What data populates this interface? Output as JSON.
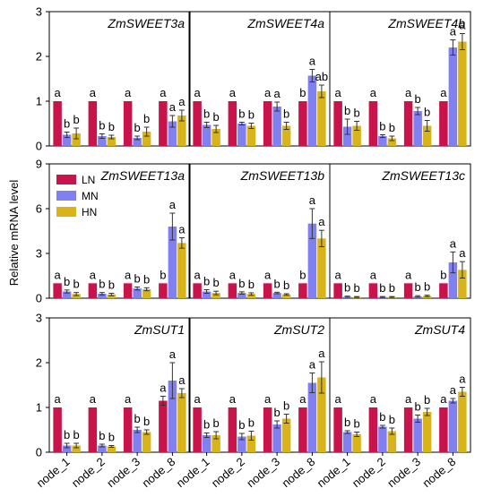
{
  "chart_data": {
    "type": "bar",
    "ylabel": "Relative mRNA level",
    "categories": [
      "node_1",
      "node_2",
      "node_3",
      "node_8"
    ],
    "legend": {
      "placement": "top-left of middle-left panel",
      "entries": [
        "LN",
        "MN",
        "HN"
      ]
    },
    "colors": {
      "LN": "#c8144b",
      "MN": "#8080f0",
      "HN": "#d8b41a"
    },
    "grid": false,
    "rows": [
      {
        "ylim": [
          0,
          3
        ],
        "yticks": [
          "0",
          "1",
          "2",
          "3"
        ]
      },
      {
        "ylim": [
          0,
          9
        ],
        "yticks": [
          "0",
          "3",
          "6",
          "9"
        ]
      },
      {
        "ylim": [
          0,
          3
        ],
        "yticks": [
          "0",
          "1",
          "2",
          "3"
        ]
      }
    ],
    "panels": [
      {
        "title": "ZmSWEET3a",
        "row": 0,
        "col": 0,
        "series": [
          {
            "name": "LN",
            "values": [
              1.0,
              1.0,
              1.0,
              1.0
            ],
            "errors": [
              0,
              0,
              0,
              0
            ],
            "labels": [
              "a",
              "a",
              "a",
              "a"
            ]
          },
          {
            "name": "MN",
            "values": [
              0.25,
              0.22,
              0.18,
              0.55
            ],
            "errors": [
              0.06,
              0.05,
              0.04,
              0.13
            ],
            "labels": [
              "b",
              "b",
              "b",
              "a"
            ]
          },
          {
            "name": "HN",
            "values": [
              0.28,
              0.2,
              0.32,
              0.68
            ],
            "errors": [
              0.12,
              0.04,
              0.1,
              0.12
            ],
            "labels": [
              "b",
              "b",
              "b",
              "a"
            ]
          }
        ]
      },
      {
        "title": "ZmSWEET4a",
        "row": 0,
        "col": 1,
        "series": [
          {
            "name": "LN",
            "values": [
              1.0,
              1.0,
              1.0,
              1.0
            ],
            "errors": [
              0,
              0,
              0,
              0
            ],
            "labels": [
              "a",
              "a",
              "a",
              "b"
            ]
          },
          {
            "name": "MN",
            "values": [
              0.47,
              0.5,
              0.88,
              1.57
            ],
            "errors": [
              0.06,
              0.03,
              0.1,
              0.14
            ],
            "labels": [
              "b",
              "b",
              "a",
              "a"
            ]
          },
          {
            "name": "HN",
            "values": [
              0.38,
              0.45,
              0.45,
              1.22
            ],
            "errors": [
              0.08,
              0.06,
              0.08,
              0.14
            ],
            "labels": [
              "b",
              "b",
              "b",
              "ab"
            ]
          }
        ]
      },
      {
        "title": "ZmSWEET4b",
        "row": 0,
        "col": 2,
        "series": [
          {
            "name": "LN",
            "values": [
              1.0,
              1.0,
              1.0,
              1.0
            ],
            "errors": [
              0,
              0,
              0,
              0
            ],
            "labels": [
              "a",
              "a",
              "a",
              "a"
            ]
          },
          {
            "name": "MN",
            "values": [
              0.43,
              0.22,
              0.78,
              2.2
            ],
            "errors": [
              0.17,
              0.03,
              0.08,
              0.17
            ],
            "labels": [
              "b",
              "b",
              "b",
              "a"
            ]
          },
          {
            "name": "HN",
            "values": [
              0.45,
              0.17,
              0.45,
              2.33
            ],
            "errors": [
              0.1,
              0.05,
              0.12,
              0.18
            ],
            "labels": [
              "b",
              "b",
              "b",
              "a"
            ]
          }
        ]
      },
      {
        "title": "ZmSWEET13a",
        "row": 1,
        "col": 0,
        "series": [
          {
            "name": "LN",
            "values": [
              1.0,
              1.0,
              1.0,
              1.0
            ],
            "errors": [
              0,
              0,
              0,
              0
            ],
            "labels": [
              "a",
              "a",
              "a",
              "b"
            ]
          },
          {
            "name": "MN",
            "values": [
              0.45,
              0.3,
              0.65,
              4.8
            ],
            "errors": [
              0.1,
              0.08,
              0.1,
              0.9
            ],
            "labels": [
              "b",
              "b",
              "b",
              "a"
            ]
          },
          {
            "name": "HN",
            "values": [
              0.28,
              0.25,
              0.6,
              3.7
            ],
            "errors": [
              0.1,
              0.08,
              0.1,
              0.35
            ],
            "labels": [
              "b",
              "b",
              "b",
              "a"
            ]
          }
        ]
      },
      {
        "title": "ZmSWEET13b",
        "row": 1,
        "col": 1,
        "series": [
          {
            "name": "LN",
            "values": [
              1.0,
              1.0,
              1.0,
              1.0
            ],
            "errors": [
              0,
              0,
              0,
              0
            ],
            "labels": [
              "a",
              "a",
              "a",
              "b"
            ]
          },
          {
            "name": "MN",
            "values": [
              0.45,
              0.35,
              0.35,
              5.0
            ],
            "errors": [
              0.12,
              0.08,
              0.05,
              1.0
            ],
            "labels": [
              "b",
              "b",
              "b",
              "a"
            ]
          },
          {
            "name": "HN",
            "values": [
              0.35,
              0.28,
              0.25,
              4.0
            ],
            "errors": [
              0.12,
              0.08,
              0.05,
              0.55
            ],
            "labels": [
              "b",
              "b",
              "b",
              "a"
            ]
          }
        ]
      },
      {
        "title": "ZmSWEET13c",
        "row": 1,
        "col": 2,
        "series": [
          {
            "name": "LN",
            "values": [
              1.0,
              1.0,
              1.0,
              1.0
            ],
            "errors": [
              0,
              0,
              0,
              0
            ],
            "labels": [
              "a",
              "a",
              "a",
              "b"
            ]
          },
          {
            "name": "MN",
            "values": [
              0.1,
              0.08,
              0.12,
              2.4
            ],
            "errors": [
              0.04,
              0.03,
              0.05,
              0.7
            ],
            "labels": [
              "b",
              "b",
              "b",
              "a"
            ]
          },
          {
            "name": "HN",
            "values": [
              0.08,
              0.08,
              0.15,
              1.9
            ],
            "errors": [
              0.03,
              0.03,
              0.05,
              0.55
            ],
            "labels": [
              "b",
              "b",
              "b",
              "a"
            ]
          }
        ]
      },
      {
        "title": "ZmSUT1",
        "row": 2,
        "col": 0,
        "series": [
          {
            "name": "LN",
            "values": [
              1.0,
              1.0,
              1.0,
              1.15
            ],
            "errors": [
              0,
              0,
              0,
              0.1
            ],
            "labels": [
              "a",
              "a",
              "a",
              "a"
            ]
          },
          {
            "name": "MN",
            "values": [
              0.15,
              0.15,
              0.5,
              1.6
            ],
            "errors": [
              0.05,
              0.03,
              0.06,
              0.4
            ],
            "labels": [
              "b",
              "b",
              "b",
              "a"
            ]
          },
          {
            "name": "HN",
            "values": [
              0.15,
              0.13,
              0.45,
              1.32
            ],
            "errors": [
              0.05,
              0.02,
              0.05,
              0.1
            ],
            "labels": [
              "b",
              "b",
              "b",
              "a"
            ]
          }
        ]
      },
      {
        "title": "ZmSUT2",
        "row": 2,
        "col": 1,
        "series": [
          {
            "name": "LN",
            "values": [
              1.0,
              1.0,
              1.0,
              1.0
            ],
            "errors": [
              0,
              0,
              0,
              0
            ],
            "labels": [
              "a",
              "a",
              "a",
              "a"
            ]
          },
          {
            "name": "MN",
            "values": [
              0.38,
              0.35,
              0.62,
              1.55
            ],
            "errors": [
              0.05,
              0.07,
              0.08,
              0.22
            ],
            "labels": [
              "b",
              "b",
              "b",
              "a"
            ]
          },
          {
            "name": "HN",
            "values": [
              0.38,
              0.37,
              0.75,
              1.67
            ],
            "errors": [
              0.08,
              0.1,
              0.1,
              0.35
            ],
            "labels": [
              "b",
              "b",
              "b",
              "a"
            ]
          }
        ]
      },
      {
        "title": "ZmSUT4",
        "row": 2,
        "col": 2,
        "series": [
          {
            "name": "LN",
            "values": [
              1.0,
              1.0,
              1.0,
              1.0
            ],
            "errors": [
              0,
              0,
              0,
              0
            ],
            "labels": [
              "a",
              "a",
              "a",
              "a"
            ]
          },
          {
            "name": "MN",
            "values": [
              0.45,
              0.57,
              0.75,
              1.15
            ],
            "errors": [
              0.03,
              0.03,
              0.08,
              0.05
            ],
            "labels": [
              "b",
              "b",
              "b",
              "a"
            ]
          },
          {
            "name": "HN",
            "values": [
              0.4,
              0.47,
              0.9,
              1.35
            ],
            "errors": [
              0.05,
              0.07,
              0.08,
              0.1
            ],
            "labels": [
              "b",
              "b",
              "b",
              "a"
            ]
          }
        ]
      }
    ]
  }
}
